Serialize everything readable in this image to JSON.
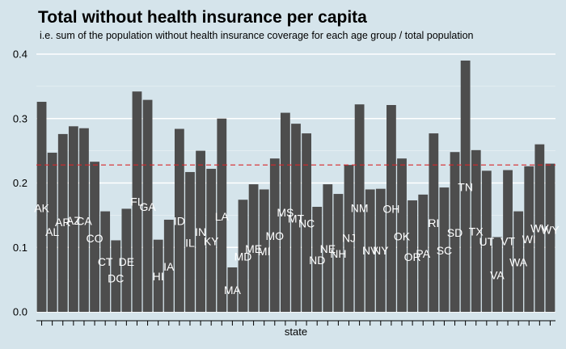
{
  "chart_data": {
    "type": "bar",
    "title": "Total without health insurance per capita",
    "subtitle": "i.e. sum of the population without health insurance coverage for each age group / total population",
    "xlabel": "state",
    "ylabel": "",
    "ylim": [
      0,
      0.4
    ],
    "yticks": [
      "0.0",
      "0.1",
      "0.2",
      "0.3",
      "0.4"
    ],
    "reference_line": {
      "value": 0.228,
      "style": "dashed",
      "color": "#d7262b"
    },
    "grid": "horizontal",
    "categories": [
      "AK",
      "AL",
      "AR",
      "AZ",
      "CA",
      "CO",
      "CT",
      "DC",
      "DE",
      "FL",
      "GA",
      "HI",
      "IA",
      "ID",
      "IL",
      "IN",
      "KY",
      "LA",
      "MA",
      "MD",
      "ME",
      "MI",
      "MO",
      "MS",
      "MT",
      "NC",
      "ND",
      "NE",
      "NH",
      "NJ",
      "NM",
      "NV",
      "NY",
      "OH",
      "OK",
      "OR",
      "PA",
      "RI",
      "SC",
      "SD",
      "TN",
      "TX",
      "UT",
      "VA",
      "VT",
      "WA",
      "WI",
      "WV",
      "WY"
    ],
    "values": [
      0.326,
      0.247,
      0.276,
      0.288,
      0.285,
      0.233,
      0.156,
      0.111,
      0.16,
      0.342,
      0.329,
      0.112,
      0.143,
      0.284,
      0.217,
      0.25,
      0.222,
      0.3,
      0.069,
      0.174,
      0.198,
      0.19,
      0.238,
      0.309,
      0.292,
      0.277,
      0.163,
      0.198,
      0.183,
      0.228,
      0.322,
      0.19,
      0.191,
      0.321,
      0.238,
      0.173,
      0.182,
      0.277,
      0.193,
      0.248,
      0.39,
      0.251,
      0.219,
      0.116,
      0.22,
      0.156,
      0.226,
      0.26,
      0.23
    ],
    "label_values": [
      0.161,
      0.124,
      0.139,
      0.142,
      0.141,
      0.114,
      0.078,
      0.052,
      0.078,
      0.171,
      0.163,
      0.055,
      0.07,
      0.141,
      0.107,
      0.124,
      0.11,
      0.148,
      0.034,
      0.086,
      0.098,
      0.094,
      0.118,
      0.154,
      0.145,
      0.137,
      0.08,
      0.098,
      0.09,
      0.115,
      0.161,
      0.095,
      0.095,
      0.16,
      0.117,
      0.085,
      0.09,
      0.138,
      0.095,
      0.123,
      0.194,
      0.125,
      0.109,
      0.057,
      0.11,
      0.077,
      0.113,
      0.13,
      0.127
    ],
    "colors": {
      "background": "#d5e4eb",
      "bar": "#4d4d4d",
      "grid": "#ffffff",
      "label": "#ffffff",
      "axis": "#000000"
    }
  }
}
